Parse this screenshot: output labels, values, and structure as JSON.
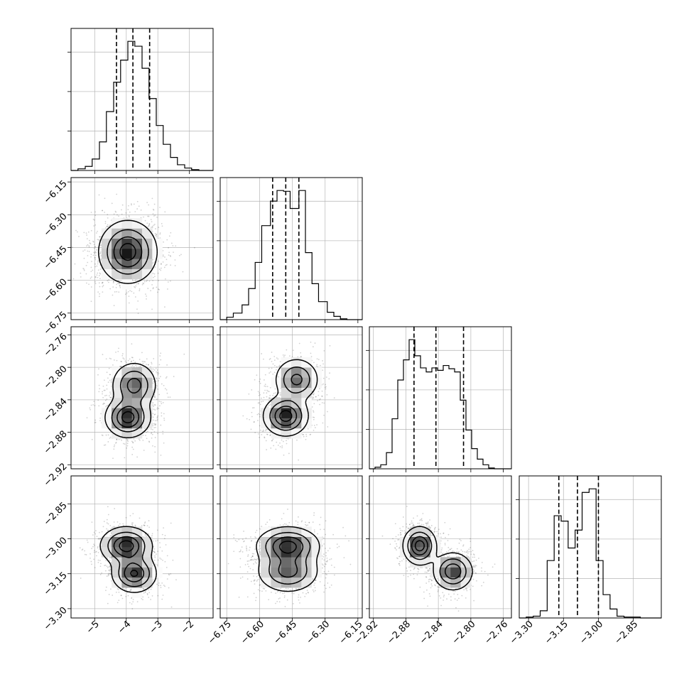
{
  "chart_data": {
    "type": "corner",
    "parameters": 4,
    "axes": [
      {
        "range": [
          -5.75,
          -1.25
        ],
        "ticks": [
          -5,
          -4,
          -3,
          -2
        ],
        "tick_labels": [
          "−5",
          "−4",
          "−3",
          "−2"
        ]
      },
      {
        "range": [
          -6.78,
          -6.13
        ],
        "ticks": [
          -6.75,
          -6.6,
          -6.45,
          -6.3,
          -6.15
        ],
        "tick_labels": [
          "−6.75",
          "−6.60",
          "−6.45",
          "−6.30",
          "−6.15"
        ]
      },
      {
        "range": [
          -2.925,
          -2.75
        ],
        "ticks": [
          -2.92,
          -2.88,
          -2.84,
          -2.8,
          -2.76
        ],
        "tick_labels": [
          "−2.92",
          "−2.88",
          "−2.84",
          "−2.80",
          "−2.76"
        ]
      },
      {
        "range": [
          -3.34,
          -2.73
        ],
        "ticks": [
          -3.3,
          -3.15,
          -3.0,
          -2.85
        ],
        "tick_labels": [
          "−3.30",
          "−3.15",
          "−3.00",
          "−2.85"
        ]
      }
    ],
    "histograms": [
      {
        "param": 0,
        "edges": [
          -5.75,
          -5.53,
          -5.3,
          -5.08,
          -4.85,
          -4.63,
          -4.4,
          -4.18,
          -3.95,
          -3.73,
          -3.5,
          -3.28,
          -3.05,
          -2.83,
          -2.6,
          -2.38,
          -2.15,
          -1.93,
          -1.7,
          -1.48,
          -1.25
        ],
        "counts": [
          0,
          2,
          5,
          14,
          35,
          72,
          108,
          135,
          158,
          152,
          125,
          88,
          55,
          32,
          16,
          7,
          3,
          1,
          0,
          0
        ],
        "quantiles": [
          -4.31,
          -3.79,
          -3.26
        ]
      },
      {
        "param": 1,
        "edges": [
          -6.78,
          -6.75,
          -6.72,
          -6.68,
          -6.65,
          -6.62,
          -6.59,
          -6.55,
          -6.52,
          -6.49,
          -6.46,
          -6.42,
          -6.39,
          -6.36,
          -6.33,
          -6.29,
          -6.26,
          -6.23,
          -6.2,
          -6.16,
          -6.13
        ],
        "counts": [
          0,
          3,
          8,
          18,
          38,
          70,
          115,
          145,
          158,
          157,
          136,
          158,
          82,
          44,
          22,
          9,
          4,
          1,
          0,
          0
        ],
        "quantiles": [
          -6.54,
          -6.48,
          -6.42
        ]
      },
      {
        "param": 2,
        "edges": [
          -2.925,
          -2.918,
          -2.911,
          -2.904,
          -2.897,
          -2.89,
          -2.883,
          -2.876,
          -2.869,
          -2.862,
          -2.855,
          -2.848,
          -2.841,
          -2.834,
          -2.827,
          -2.82,
          -2.813,
          -2.806,
          -2.799,
          -2.792,
          -2.785,
          -2.778,
          -2.771,
          -2.764,
          -2.757,
          -2.75
        ],
        "counts": [
          0,
          2,
          5,
          20,
          62,
          110,
          135,
          160,
          140,
          125,
          120,
          125,
          122,
          128,
          124,
          120,
          85,
          48,
          25,
          12,
          5,
          1,
          0,
          0,
          0
        ],
        "quantiles": [
          -2.87,
          -2.843,
          -2.809
        ]
      },
      {
        "param": 3,
        "edges": [
          -3.34,
          -3.31,
          -3.28,
          -3.25,
          -3.22,
          -3.19,
          -3.16,
          -3.13,
          -3.1,
          -3.07,
          -3.04,
          -3.01,
          -2.98,
          -2.95,
          -2.92,
          -2.89,
          -2.86,
          -2.82,
          -2.79,
          -2.76,
          -2.73
        ],
        "counts": [
          0,
          1,
          2,
          8,
          64,
          114,
          108,
          78,
          98,
          140,
          144,
          64,
          26,
          10,
          2,
          1,
          1,
          0,
          0,
          0
        ],
        "quantiles": [
          -3.17,
          -3.09,
          -3.0
        ]
      }
    ],
    "density_panels": [
      {
        "row": 1,
        "col": 0,
        "modes": [
          {
            "x": -3.95,
            "y": -6.47,
            "sx": 0.45,
            "sy": 0.07,
            "w": 1.0
          }
        ]
      },
      {
        "row": 2,
        "col": 0,
        "modes": [
          {
            "x": -3.95,
            "y": -2.862,
            "sx": 0.35,
            "sy": 0.012,
            "w": 1.0
          },
          {
            "x": -3.75,
            "y": -2.822,
            "sx": 0.35,
            "sy": 0.014,
            "w": 0.75
          }
        ]
      },
      {
        "row": 2,
        "col": 1,
        "modes": [
          {
            "x": -6.48,
            "y": -2.86,
            "sx": 0.05,
            "sy": 0.012,
            "w": 1.0
          },
          {
            "x": -6.43,
            "y": -2.815,
            "sx": 0.05,
            "sy": 0.013,
            "w": 0.7
          }
        ]
      },
      {
        "row": 3,
        "col": 0,
        "modes": [
          {
            "x": -4.0,
            "y": -3.03,
            "sx": 0.4,
            "sy": 0.04,
            "w": 1.0
          },
          {
            "x": -3.75,
            "y": -3.15,
            "sx": 0.35,
            "sy": 0.04,
            "w": 0.9
          }
        ]
      },
      {
        "row": 3,
        "col": 1,
        "modes": [
          {
            "x": -6.47,
            "y": -3.03,
            "sx": 0.07,
            "sy": 0.04,
            "w": 1.0
          },
          {
            "x": -6.47,
            "y": -3.14,
            "sx": 0.07,
            "sy": 0.045,
            "w": 0.75
          }
        ]
      },
      {
        "row": 3,
        "col": 2,
        "modes": [
          {
            "x": -2.863,
            "y": -3.03,
            "sx": 0.01,
            "sy": 0.04,
            "w": 1.0
          },
          {
            "x": -2.822,
            "y": -3.14,
            "sx": 0.012,
            "sy": 0.04,
            "w": 0.85
          }
        ]
      }
    ],
    "grid": true
  }
}
